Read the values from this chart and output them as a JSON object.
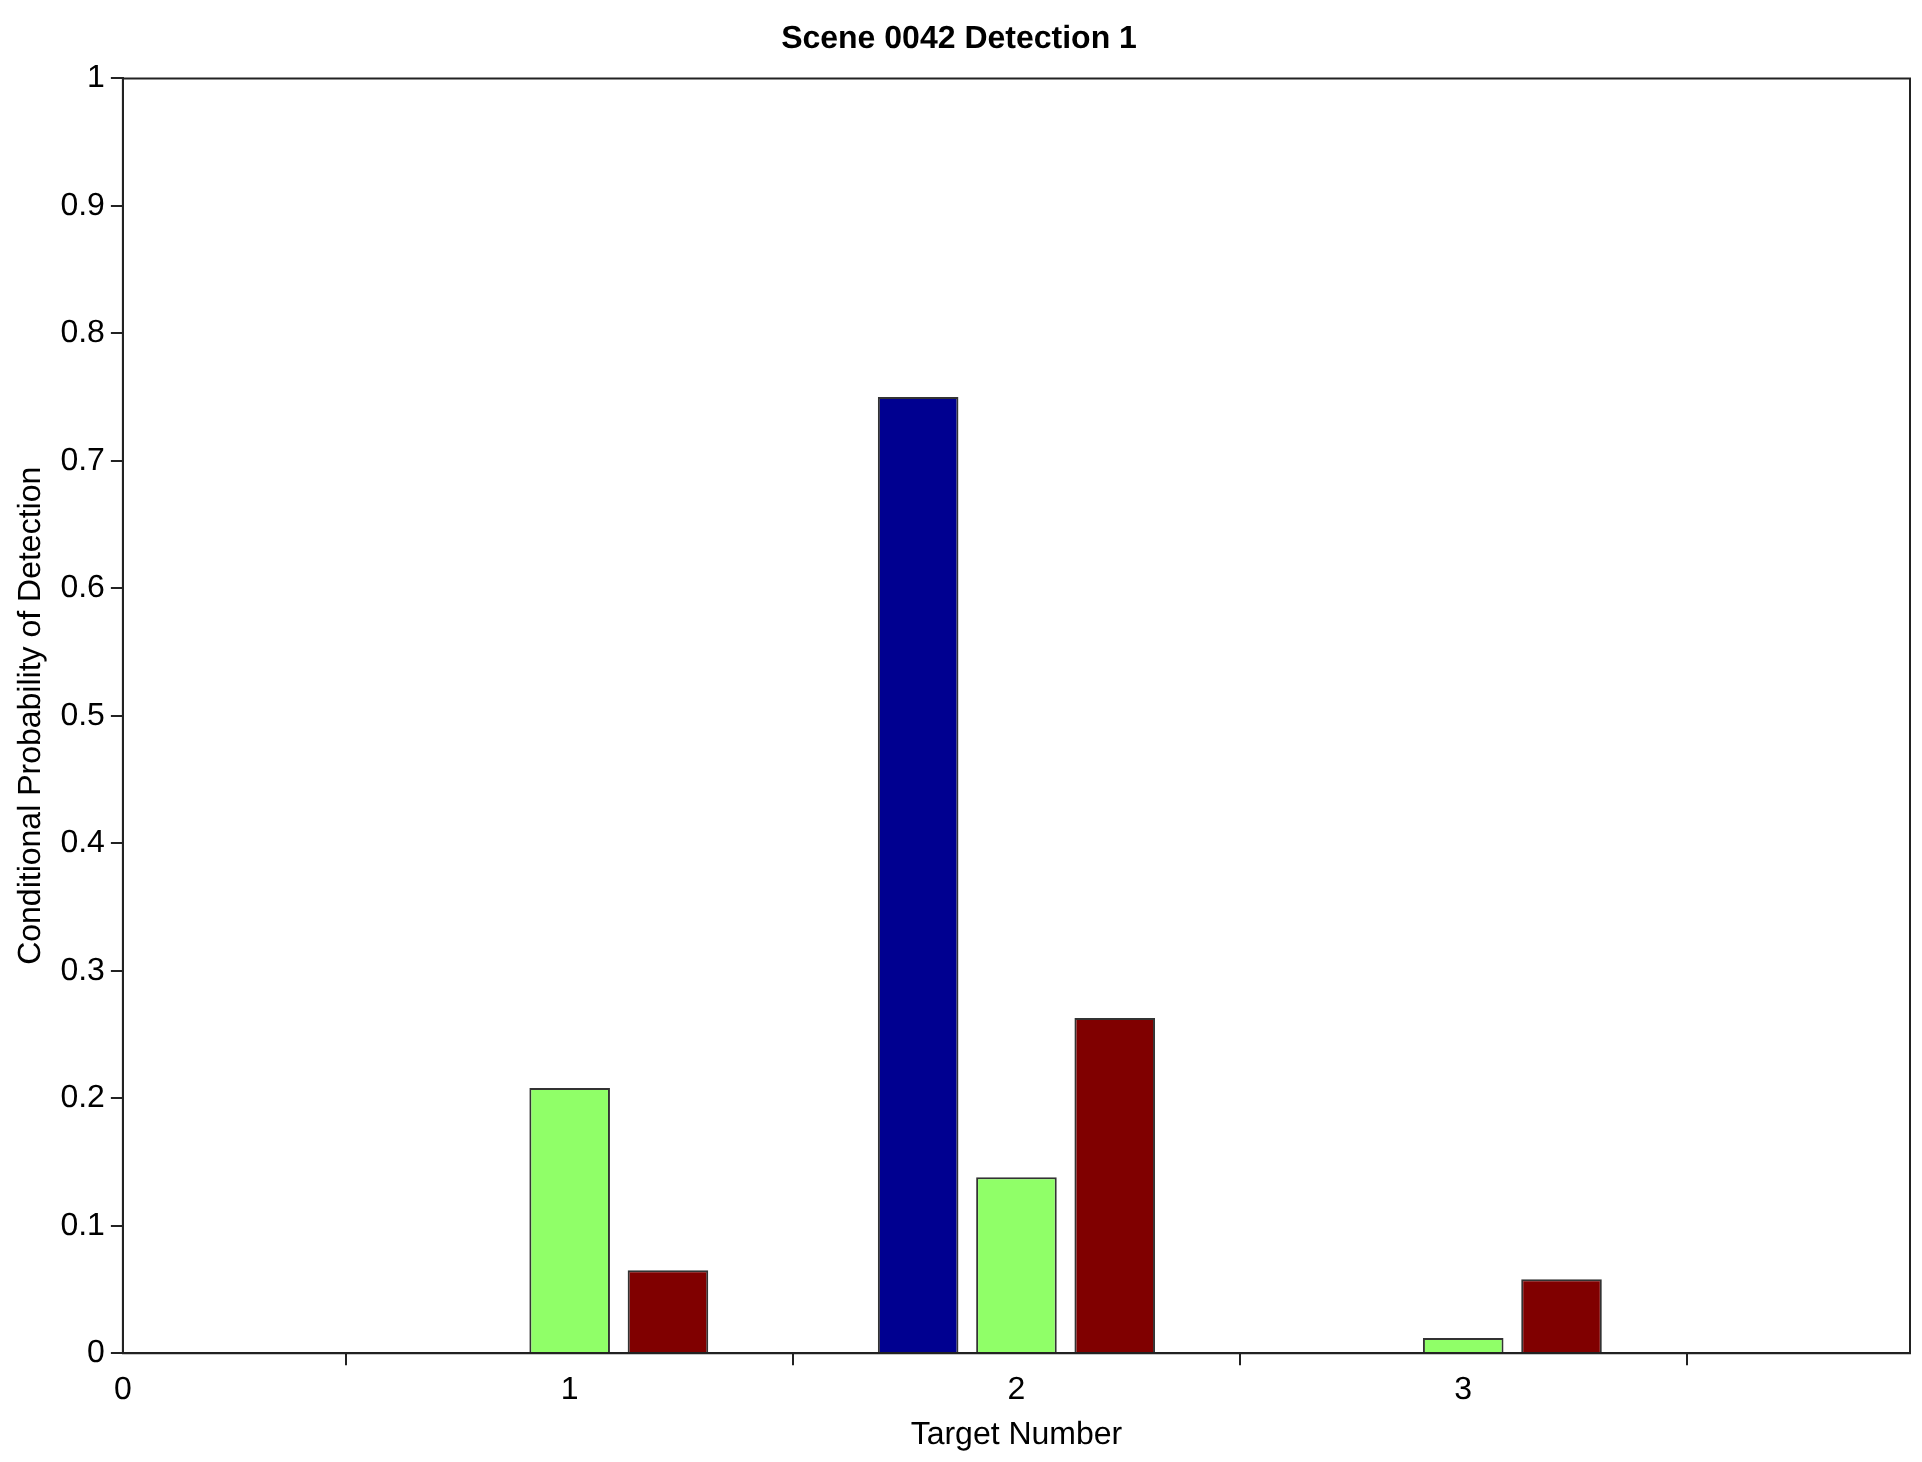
{
  "chart_data": {
    "type": "bar",
    "title": "Scene 0042 Detection 1",
    "xlabel": "Target Number",
    "ylabel": "Conditional Probability of Detection",
    "x": [
      1,
      2,
      3
    ],
    "series": [
      {
        "color": "#000090",
        "values": [
          0,
          0.75,
          0
        ]
      },
      {
        "color": "#90ff68",
        "values": [
          0.208,
          0.138,
          0.012
        ]
      },
      {
        "color": "#800000",
        "values": [
          0.065,
          0.263,
          0.058
        ]
      }
    ],
    "xlim": [
      0,
      4
    ],
    "xticks": [
      0,
      1,
      2,
      3
    ],
    "ylim": [
      0,
      1
    ],
    "yticks": [
      0,
      0.1,
      0.2,
      0.3,
      0.4,
      0.5,
      0.6,
      0.7,
      0.8,
      0.9,
      1
    ],
    "grid": false,
    "legend": false
  }
}
